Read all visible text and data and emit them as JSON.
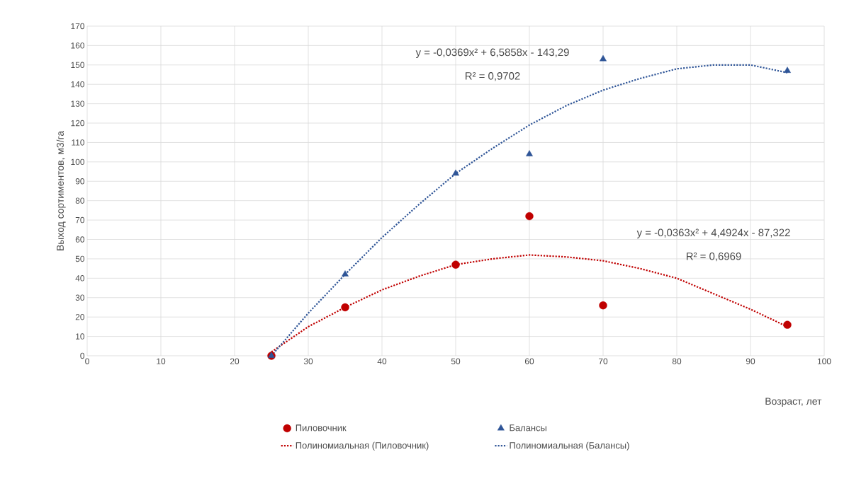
{
  "chart_data": {
    "type": "scatter",
    "xlabel": "Возраст, лет",
    "ylabel": "Выход сортиментов, м3/га",
    "xlim": [
      0,
      100
    ],
    "xticks": [
      0,
      10,
      20,
      30,
      40,
      50,
      60,
      70,
      80,
      90,
      100
    ],
    "ylim": [
      0,
      170
    ],
    "yticks": [
      0,
      10,
      20,
      30,
      40,
      50,
      60,
      70,
      80,
      90,
      100,
      110,
      120,
      130,
      140,
      150,
      160,
      170
    ],
    "grid": true,
    "legend": "bottom",
    "annotations": [
      "y = -0,0369x² + 6,5858x - 143,29",
      "R² = 0,9702",
      "y = -0,0363x² + 4,4924x - 87,322",
      "R² = 0,6969"
    ],
    "series": [
      {
        "name": "Пиловочник",
        "type": "scatter",
        "marker": "circle",
        "color": "#c00000",
        "x": [
          25,
          35,
          50,
          60,
          70,
          95
        ],
        "values": [
          0,
          25,
          47,
          72,
          26,
          16
        ]
      },
      {
        "name": "Балансы",
        "type": "scatter",
        "marker": "triangle",
        "color": "#2f5597",
        "x": [
          25,
          35,
          50,
          60,
          70,
          95
        ],
        "values": [
          0,
          42,
          94,
          104,
          153,
          147
        ]
      },
      {
        "name": "Полиномиальная (Пиловочник)",
        "type": "line",
        "marker": "none",
        "line_style": "dotted",
        "color": "#c00000",
        "x": [
          25,
          30,
          35,
          40,
          45,
          50,
          55,
          60,
          65,
          70,
          75,
          80,
          85,
          90,
          95
        ],
        "values": [
          2,
          15,
          25,
          34,
          41,
          47,
          50,
          52,
          51,
          49,
          45,
          40,
          32,
          24,
          15
        ]
      },
      {
        "name": "Полиномиальная (Балансы)",
        "type": "line",
        "marker": "none",
        "line_style": "dotted",
        "color": "#2f5597",
        "x": [
          25,
          30,
          35,
          40,
          45,
          50,
          55,
          60,
          65,
          70,
          75,
          80,
          85,
          90,
          95
        ],
        "values": [
          0,
          22,
          42,
          61,
          78,
          94,
          107,
          119,
          129,
          137,
          143,
          148,
          150,
          150,
          146
        ]
      }
    ]
  }
}
